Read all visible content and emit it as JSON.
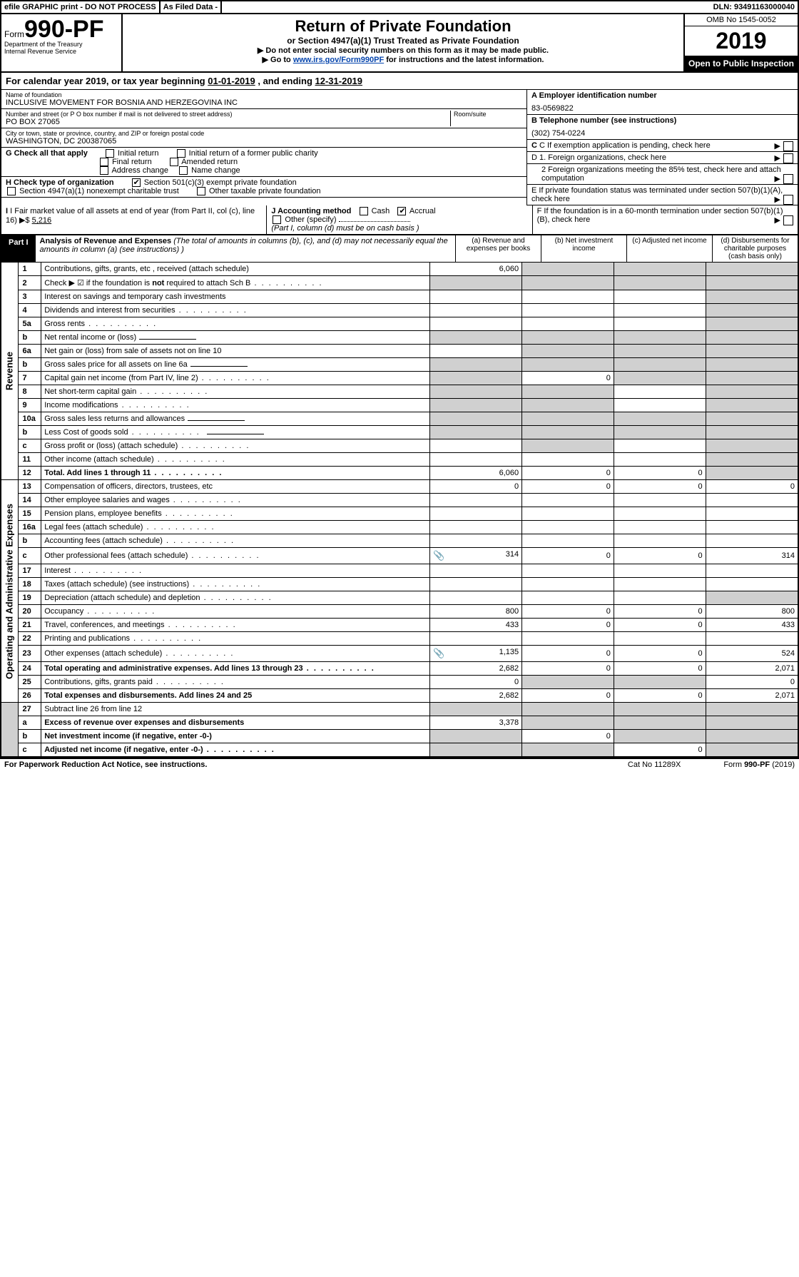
{
  "top": {
    "efile": "efile GRAPHIC print - DO NOT PROCESS",
    "asfiled": "As Filed Data -",
    "dln": "DLN: 93491163000040"
  },
  "header": {
    "form_prefix": "Form",
    "form_no": "990-PF",
    "dept": "Department of the Treasury",
    "irs": "Internal Revenue Service",
    "title": "Return of Private Foundation",
    "subtitle": "or Section 4947(a)(1) Trust Treated as Private Foundation",
    "note1": "▶ Do not enter social security numbers on this form as it may be made public.",
    "note2_pre": "▶ Go to ",
    "note2_link": "www.irs.gov/Form990PF",
    "note2_post": " for instructions and the latest information.",
    "omb": "OMB No 1545-0052",
    "year": "2019",
    "open": "Open to Public Inspection"
  },
  "calyear": {
    "pre": "For calendar year 2019, or tax year beginning ",
    "begin": "01-01-2019",
    "mid": " , and ending ",
    "end": "12-31-2019"
  },
  "meta": {
    "name_lbl": "Name of foundation",
    "name": "INCLUSIVE MOVEMENT FOR BOSNIA AND HERZEGOVINA INC",
    "addr_lbl": "Number and street (or P O  box number if mail is not delivered to street address)",
    "room_lbl": "Room/suite",
    "addr": "PO BOX 27065",
    "city_lbl": "City or town, state or province, country, and ZIP or foreign postal code",
    "city": "WASHINGTON, DC  200387065",
    "a_lbl": "A Employer identification number",
    "a_val": "83-0569822",
    "b_lbl": "B Telephone number (see instructions)",
    "b_val": "(302) 754-0224",
    "c_lbl": "C If exemption application is pending, check here",
    "g_lbl": "G Check all that apply",
    "g_opts": [
      "Initial return",
      "Initial return of a former public charity",
      "Final return",
      "Amended return",
      "Address change",
      "Name change"
    ],
    "h_lbl": "H Check type of organization",
    "h_opt1": "Section 501(c)(3) exempt private foundation",
    "h_opt2": "Section 4947(a)(1) nonexempt charitable trust",
    "h_opt3": "Other taxable private foundation",
    "d1": "D 1. Foreign organizations, check here",
    "d2": "2 Foreign organizations meeting the 85% test, check here and attach computation",
    "e": "E  If private foundation status was terminated under section 507(b)(1)(A), check here",
    "i_lbl": "I Fair market value of all assets at end of year (from Part II, col  (c), line 16)",
    "i_val": "5,216",
    "j_lbl": "J Accounting method",
    "j_cash": "Cash",
    "j_accrual": "Accrual",
    "j_other": "Other (specify)",
    "j_note": "(Part I, column (d) must be on cash basis )",
    "f": "F  If the foundation is in a 60-month termination under section 507(b)(1)(B), check here"
  },
  "part1": {
    "tag": "Part I",
    "title": "Analysis of Revenue and Expenses",
    "title_note": " (The total of amounts in columns (b), (c), and (d) may not necessarily equal the amounts in column (a) (see instructions) )",
    "col_a": "(a)    Revenue and expenses per books",
    "col_b": "(b)   Net investment income",
    "col_c": "(c)   Adjusted net income",
    "col_d": "(d)   Disbursements for charitable purposes (cash basis only)"
  },
  "side": {
    "rev": "Revenue",
    "exp": "Operating and Administrative Expenses"
  },
  "rows": [
    {
      "no": "1",
      "lbl": "Contributions, gifts, grants, etc , received (attach schedule)",
      "a": "6,060",
      "b": "",
      "c": "",
      "d": "",
      "shade_b": true,
      "shade_c": true,
      "shade_d": true
    },
    {
      "no": "2",
      "lbl": "Check ▶ ☑ if the foundation is not required to attach Sch  B",
      "a": "",
      "b": "",
      "c": "",
      "d": "",
      "shade_a": true,
      "shade_b": true,
      "shade_c": true,
      "shade_d": true,
      "bold_not": true,
      "dots": true
    },
    {
      "no": "3",
      "lbl": "Interest on savings and temporary cash investments",
      "a": "",
      "b": "",
      "c": "",
      "d": "",
      "shade_d": true
    },
    {
      "no": "4",
      "lbl": "Dividends and interest from securities",
      "a": "",
      "b": "",
      "c": "",
      "d": "",
      "dots": true,
      "shade_d": true
    },
    {
      "no": "5a",
      "lbl": "Gross rents",
      "a": "",
      "b": "",
      "c": "",
      "d": "",
      "dots": true,
      "shade_d": true
    },
    {
      "no": "b",
      "lbl": "Net rental income or (loss)",
      "a": "",
      "b": "",
      "c": "",
      "d": "",
      "inline": true,
      "shade_a": true,
      "shade_b": true,
      "shade_c": true,
      "shade_d": true
    },
    {
      "no": "6a",
      "lbl": "Net gain or (loss) from sale of assets not on line 10",
      "a": "",
      "b": "",
      "c": "",
      "d": "",
      "shade_b": true,
      "shade_c": true,
      "shade_d": true
    },
    {
      "no": "b",
      "lbl": "Gross sales price for all assets on line 6a",
      "a": "",
      "b": "",
      "c": "",
      "d": "",
      "inline": true,
      "shade_a": true,
      "shade_b": true,
      "shade_c": true,
      "shade_d": true
    },
    {
      "no": "7",
      "lbl": "Capital gain net income (from Part IV, line 2)",
      "a": "",
      "b": "0",
      "c": "",
      "d": "",
      "dots": true,
      "shade_a": true,
      "shade_c": true,
      "shade_d": true
    },
    {
      "no": "8",
      "lbl": "Net short-term capital gain",
      "a": "",
      "b": "",
      "c": "",
      "d": "",
      "dots": true,
      "shade_a": true,
      "shade_b": true,
      "shade_d": true
    },
    {
      "no": "9",
      "lbl": "Income modifications",
      "a": "",
      "b": "",
      "c": "",
      "d": "",
      "dots": true,
      "shade_a": true,
      "shade_b": true,
      "shade_d": true
    },
    {
      "no": "10a",
      "lbl": "Gross sales less returns and allowances",
      "a": "",
      "b": "",
      "c": "",
      "d": "",
      "inline": true,
      "shade_a": true,
      "shade_b": true,
      "shade_c": true,
      "shade_d": true
    },
    {
      "no": "b",
      "lbl": "Less  Cost of goods sold",
      "a": "",
      "b": "",
      "c": "",
      "d": "",
      "inline": true,
      "dots": true,
      "shade_a": true,
      "shade_b": true,
      "shade_c": true,
      "shade_d": true
    },
    {
      "no": "c",
      "lbl": "Gross profit or (loss) (attach schedule)",
      "a": "",
      "b": "",
      "c": "",
      "d": "",
      "dots": true,
      "shade_b": true,
      "shade_d": true
    },
    {
      "no": "11",
      "lbl": "Other income (attach schedule)",
      "a": "",
      "b": "",
      "c": "",
      "d": "",
      "dots": true,
      "shade_d": true
    },
    {
      "no": "12",
      "lbl": "Total. Add lines 1 through 11",
      "a": "6,060",
      "b": "0",
      "c": "0",
      "d": "",
      "dots": true,
      "bold": true,
      "shade_d": true
    }
  ],
  "exp_rows": [
    {
      "no": "13",
      "lbl": "Compensation of officers, directors, trustees, etc",
      "a": "0",
      "b": "0",
      "c": "0",
      "d": "0"
    },
    {
      "no": "14",
      "lbl": "Other employee salaries and wages",
      "a": "",
      "b": "",
      "c": "",
      "d": "",
      "dots": true
    },
    {
      "no": "15",
      "lbl": "Pension plans, employee benefits",
      "a": "",
      "b": "",
      "c": "",
      "d": "",
      "dots": true
    },
    {
      "no": "16a",
      "lbl": "Legal fees (attach schedule)",
      "a": "",
      "b": "",
      "c": "",
      "d": "",
      "dots": true
    },
    {
      "no": "b",
      "lbl": "Accounting fees (attach schedule)",
      "a": "",
      "b": "",
      "c": "",
      "d": "",
      "dots": true
    },
    {
      "no": "c",
      "lbl": "Other professional fees (attach schedule)",
      "a": "314",
      "b": "0",
      "c": "0",
      "d": "314",
      "dots": true,
      "clip": true
    },
    {
      "no": "17",
      "lbl": "Interest",
      "a": "",
      "b": "",
      "c": "",
      "d": "",
      "dots": true
    },
    {
      "no": "18",
      "lbl": "Taxes (attach schedule) (see instructions)",
      "a": "",
      "b": "",
      "c": "",
      "d": "",
      "dots": true
    },
    {
      "no": "19",
      "lbl": "Depreciation (attach schedule) and depletion",
      "a": "",
      "b": "",
      "c": "",
      "d": "",
      "dots": true,
      "shade_d": true
    },
    {
      "no": "20",
      "lbl": "Occupancy",
      "a": "800",
      "b": "0",
      "c": "0",
      "d": "800",
      "dots": true
    },
    {
      "no": "21",
      "lbl": "Travel, conferences, and meetings",
      "a": "433",
      "b": "0",
      "c": "0",
      "d": "433",
      "dots": true
    },
    {
      "no": "22",
      "lbl": "Printing and publications",
      "a": "",
      "b": "",
      "c": "",
      "d": "",
      "dots": true
    },
    {
      "no": "23",
      "lbl": "Other expenses (attach schedule)",
      "a": "1,135",
      "b": "0",
      "c": "0",
      "d": "524",
      "dots": true,
      "clip": true
    },
    {
      "no": "24",
      "lbl": "Total operating and administrative expenses. Add lines 13 through 23",
      "a": "2,682",
      "b": "0",
      "c": "0",
      "d": "2,071",
      "dots": true,
      "bold": true
    },
    {
      "no": "25",
      "lbl": "Contributions, gifts, grants paid",
      "a": "0",
      "b": "",
      "c": "",
      "d": "0",
      "dots": true,
      "shade_b": true,
      "shade_c": true
    },
    {
      "no": "26",
      "lbl": "Total expenses and disbursements. Add lines 24 and 25",
      "a": "2,682",
      "b": "0",
      "c": "0",
      "d": "2,071",
      "bold": true
    }
  ],
  "bottom_rows": [
    {
      "no": "27",
      "lbl": "Subtract line 26 from line 12",
      "a": "",
      "b": "",
      "c": "",
      "d": "",
      "shade_a": true,
      "shade_b": true,
      "shade_c": true,
      "shade_d": true
    },
    {
      "no": "a",
      "lbl": "Excess of revenue over expenses and disbursements",
      "a": "3,378",
      "b": "",
      "c": "",
      "d": "",
      "bold": true,
      "shade_b": true,
      "shade_c": true,
      "shade_d": true
    },
    {
      "no": "b",
      "lbl": "Net investment income (if negative, enter -0-)",
      "a": "",
      "b": "0",
      "c": "",
      "d": "",
      "bold": true,
      "shade_a": true,
      "shade_c": true,
      "shade_d": true
    },
    {
      "no": "c",
      "lbl": "Adjusted net income (if negative, enter -0-)",
      "a": "",
      "b": "",
      "c": "0",
      "d": "",
      "bold": true,
      "dots": true,
      "shade_a": true,
      "shade_b": true,
      "shade_d": true
    }
  ],
  "footer": {
    "left": "For Paperwork Reduction Act Notice, see instructions.",
    "mid": "Cat  No  11289X",
    "right": "Form 990-PF (2019)"
  }
}
